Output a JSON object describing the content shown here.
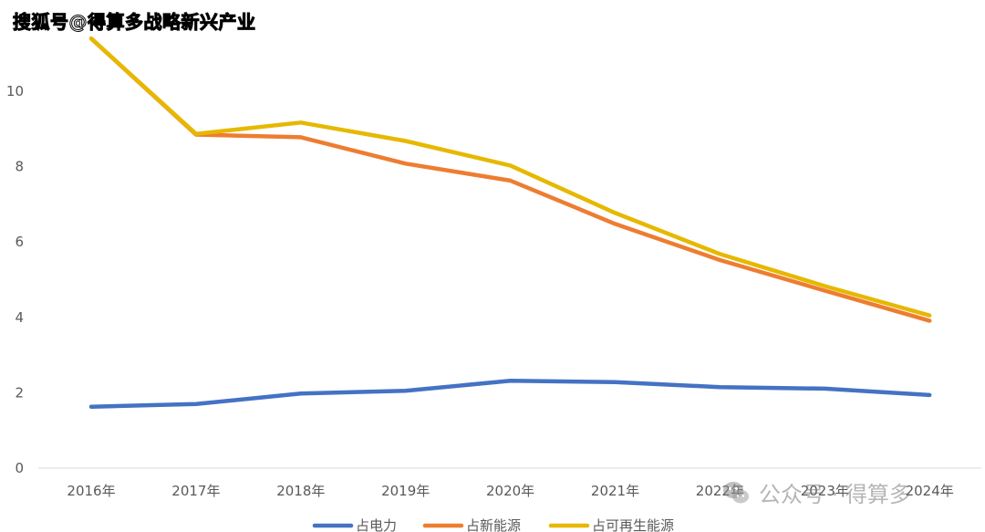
{
  "watermarks": {
    "top": "搜狐号@得算多战略新兴产业",
    "bottom": "公众号 · 得算多"
  },
  "colors": {
    "series": [
      "#4472C4",
      "#ED7D31",
      "#E6B800"
    ],
    "grid": "#d9d9d9",
    "axis": "#d9d9d9",
    "text": "#595959"
  },
  "chart_data": {
    "type": "line",
    "categories": [
      "2016年",
      "2017年",
      "2018年",
      "2019年",
      "2020年",
      "2021年",
      "2022年",
      "2023年",
      "2024年"
    ],
    "series": [
      {
        "name": "占电力",
        "values": [
          1.63,
          1.7,
          1.98,
          2.05,
          2.32,
          2.28,
          2.15,
          2.11,
          1.94
        ]
      },
      {
        "name": "占新能源",
        "values": [
          11.4,
          8.85,
          8.78,
          8.08,
          7.63,
          6.48,
          5.52,
          4.71,
          3.91
        ]
      },
      {
        "name": "占可再生能源",
        "values": [
          11.4,
          8.87,
          9.17,
          8.68,
          8.03,
          6.77,
          5.68,
          4.83,
          4.05
        ]
      }
    ],
    "yticks": [
      "0",
      "2",
      "4",
      "6",
      "8",
      "10"
    ],
    "ytick_values": [
      0,
      2,
      4,
      6,
      8,
      10
    ],
    "ylim": [
      0,
      12
    ],
    "grid": false,
    "legend_position": "bottom"
  }
}
